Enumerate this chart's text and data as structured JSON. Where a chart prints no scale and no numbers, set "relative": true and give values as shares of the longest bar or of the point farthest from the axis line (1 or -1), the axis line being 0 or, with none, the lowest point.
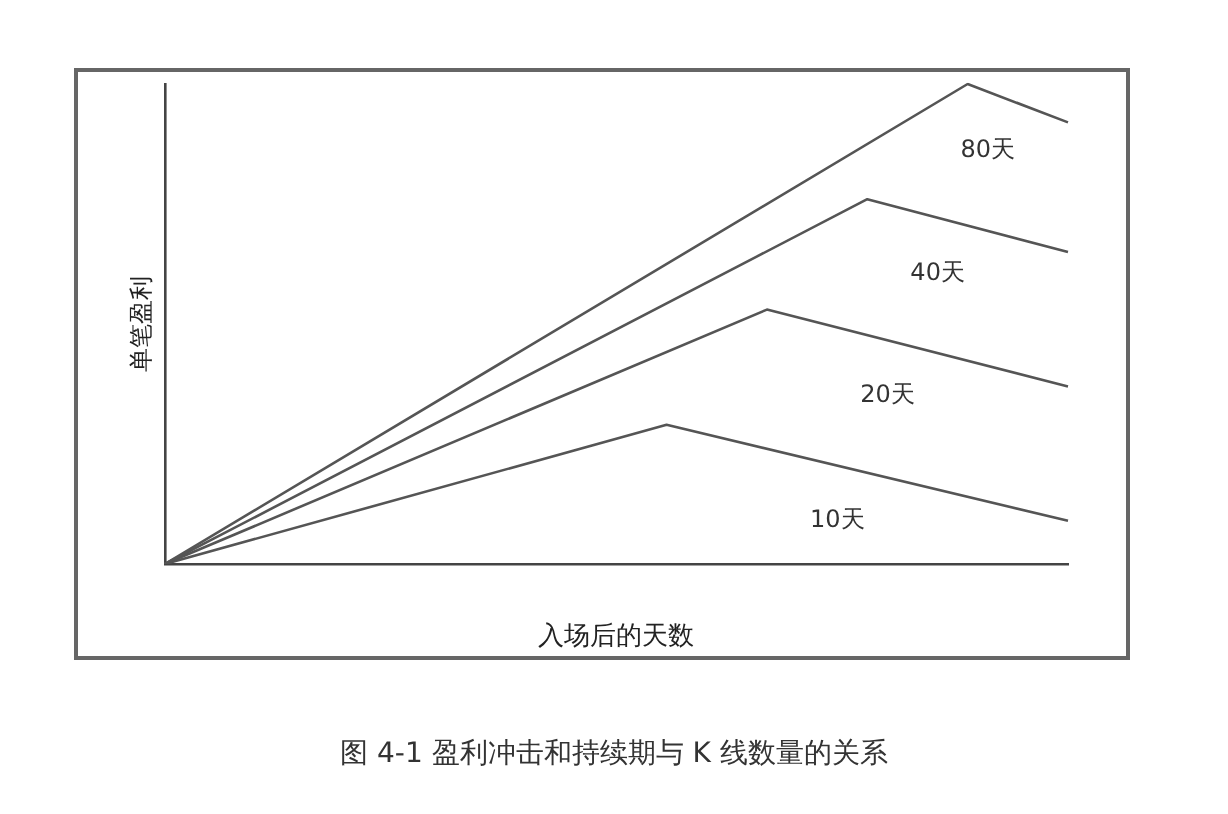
{
  "chart_data": {
    "type": "line",
    "title": "图 4-1   盈利冲击和持续期与 K 线数量的关系",
    "xlabel": "入场后的天数",
    "ylabel": "单笔盈利",
    "relative": true,
    "grid": false,
    "legend": false,
    "marker": "none",
    "line_style": "solid",
    "categories": [
      null,
      null,
      null,
      null,
      null,
      null,
      null,
      null,
      null,
      null
    ],
    "series": [
      {
        "name": "80天",
        "color": "#555555",
        "values": [
          0,
          null,
          null,
          null,
          null,
          null,
          null,
          null,
          1,
          0.92
        ]
      },
      {
        "name": "40天",
        "color": "#555555",
        "values": [
          0,
          null,
          null,
          null,
          null,
          null,
          null,
          0.76,
          null,
          0.65
        ]
      },
      {
        "name": "20天",
        "color": "#555555",
        "values": [
          0,
          null,
          null,
          null,
          null,
          null,
          0.53,
          null,
          null,
          0.37
        ]
      },
      {
        "name": "10天",
        "color": "#555555",
        "values": [
          0,
          null,
          null,
          null,
          null,
          0.29,
          null,
          null,
          null,
          0.09
        ]
      }
    ]
  }
}
